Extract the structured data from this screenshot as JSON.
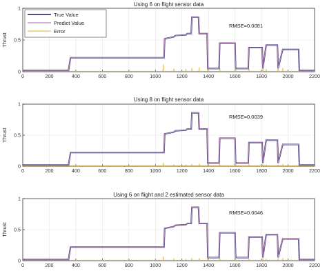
{
  "colors": {
    "true_value": "#3a3470",
    "predict_value": "#c896c8",
    "error": "#e8c85a",
    "axes": "#333333",
    "grid": "#e2e2e2"
  },
  "chart_data": [
    {
      "type": "line",
      "title": "Using 6 on flight sensor data",
      "ylabel": "Thrust",
      "xlabel": "",
      "xlim": [
        0,
        2200
      ],
      "ylim": [
        0,
        1
      ],
      "xticks": [
        0,
        200,
        400,
        600,
        800,
        1000,
        1200,
        1400,
        1600,
        1800,
        2000,
        2200
      ],
      "yticks": [
        0,
        0.5,
        1
      ],
      "ytick_labels": [
        "0",
        "0.5",
        "1"
      ],
      "grid": true,
      "legend": {
        "placement": "top-left",
        "entries": [
          "True Value",
          "Predict Value",
          "Error"
        ]
      },
      "annotation": "RMSE=0.0081",
      "error_scale": 1.0,
      "series": [
        {
          "name": "True Value"
        },
        {
          "name": "Predict Value"
        },
        {
          "name": "Error"
        }
      ]
    },
    {
      "type": "line",
      "title": "Using 8 on flight sensor data",
      "ylabel": "Thrust",
      "xlabel": "",
      "xlim": [
        0,
        2200
      ],
      "ylim": [
        0,
        1
      ],
      "xticks": [
        0,
        200,
        400,
        600,
        800,
        1000,
        1200,
        1400,
        1600,
        1800,
        2000,
        2200
      ],
      "yticks": [
        0,
        0.5,
        1
      ],
      "ytick_labels": [
        "0",
        "0.5",
        "1"
      ],
      "grid": true,
      "legend": null,
      "annotation": "RMSE=0.0039",
      "error_scale": 0.5,
      "series": [
        {
          "name": "True Value"
        },
        {
          "name": "Predict Value"
        },
        {
          "name": "Error"
        }
      ]
    },
    {
      "type": "line",
      "title": "Using 6 on flight and 2 estimated sensor data",
      "ylabel": "Thrust",
      "xlabel": "",
      "xlim": [
        0,
        2200
      ],
      "ylim": [
        0,
        1
      ],
      "xticks": [
        0,
        200,
        400,
        600,
        800,
        1000,
        1200,
        1400,
        1600,
        1800,
        2000,
        2200
      ],
      "yticks": [
        0,
        0.5,
        1
      ],
      "ytick_labels": [
        "0",
        "0.5",
        "1"
      ],
      "grid": true,
      "legend": null,
      "annotation": "RMSE=0.0046",
      "error_scale": 0.6,
      "series": [
        {
          "name": "True Value"
        },
        {
          "name": "Predict Value"
        },
        {
          "name": "Error"
        }
      ]
    }
  ],
  "signal": {
    "x": [
      0,
      345,
      360,
      1060,
      1065,
      1070,
      1140,
      1150,
      1230,
      1240,
      1270,
      1275,
      1325,
      1330,
      1390,
      1395,
      1480,
      1485,
      1500,
      1600,
      1605,
      1610,
      1700,
      1705,
      1725,
      1805,
      1810,
      1835,
      1920,
      1925,
      1960,
      2080,
      2085,
      2200
    ],
    "y": [
      0.02,
      0.02,
      0.22,
      0.22,
      0.22,
      0.52,
      0.55,
      0.57,
      0.58,
      0.6,
      0.6,
      0.86,
      0.86,
      0.6,
      0.6,
      0.05,
      0.05,
      0.45,
      0.45,
      0.45,
      0.05,
      0.05,
      0.05,
      0.38,
      0.38,
      0.38,
      0.05,
      0.42,
      0.42,
      0.05,
      0.35,
      0.35,
      0.02,
      0.02
    ]
  },
  "error_spikes": {
    "x": [
      345,
      1060,
      1140,
      1230,
      1275,
      1330,
      1395,
      1485,
      1605,
      1705,
      1810,
      1835,
      1925,
      1960,
      2085
    ],
    "y": [
      0.1,
      0.12,
      0.05,
      0.04,
      0.06,
      0.07,
      0.06,
      0.06,
      0.05,
      0.05,
      0.06,
      0.04,
      0.05,
      0.06,
      0.04
    ]
  }
}
